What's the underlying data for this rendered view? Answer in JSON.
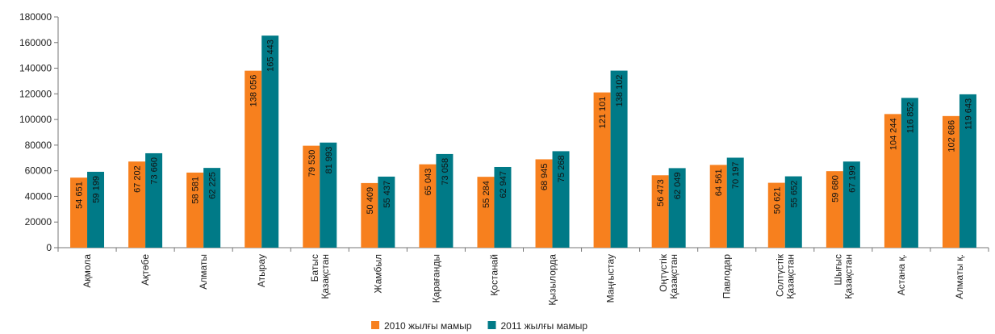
{
  "chart_data": {
    "type": "bar",
    "categories": [
      [
        "Ақмола"
      ],
      [
        "Ақтөбе"
      ],
      [
        "Алматы"
      ],
      [
        "Атырау"
      ],
      [
        "Батыс",
        "Қазақстан"
      ],
      [
        "Жамбыл"
      ],
      [
        "Қарағанды"
      ],
      [
        "Қостанай"
      ],
      [
        "Қызылорда"
      ],
      [
        "Маңғыстау"
      ],
      [
        "Оңтүстік",
        "Қазақстан"
      ],
      [
        "Павлодар"
      ],
      [
        "Солтүстік",
        "Қазақстан"
      ],
      [
        "Шығыс",
        "Қазақстан"
      ],
      [
        "Астана қ."
      ],
      [
        "Алматы қ."
      ]
    ],
    "series": [
      {
        "name": "2010 жылғы мамыр",
        "color": "#f7801e",
        "values": [
          54651,
          67202,
          58581,
          138056,
          79530,
          50409,
          65043,
          55284,
          68945,
          121101,
          56473,
          64561,
          50621,
          59680,
          104244,
          102686
        ],
        "value_labels": [
          "54 651",
          "67 202",
          "58 581",
          "138 056",
          "79 530",
          "50 409",
          "65 043",
          "55 284",
          "68 945",
          "121 101",
          "56 473",
          "64 561",
          "50 621",
          "59 680",
          "104 244",
          "102 686"
        ]
      },
      {
        "name": "2011 жылғы мамыр",
        "color": "#007a87",
        "values": [
          59199,
          73660,
          62225,
          165443,
          81993,
          55437,
          73058,
          62947,
          75268,
          138102,
          62049,
          70197,
          55652,
          67199,
          116852,
          119643
        ],
        "value_labels": [
          "59 199",
          "73 660",
          "62 225",
          "165 443",
          "81 993",
          "55 437",
          "73 058",
          "62 947",
          "75 268",
          "138 102",
          "62 049",
          "70 197",
          "55 652",
          "67 199",
          "116 852",
          "119 643"
        ]
      }
    ],
    "ylim": [
      0,
      180000
    ],
    "yticks": [
      0,
      20000,
      40000,
      60000,
      80000,
      100000,
      120000,
      140000,
      160000,
      180000
    ],
    "grid": false,
    "legend": "bottom"
  }
}
